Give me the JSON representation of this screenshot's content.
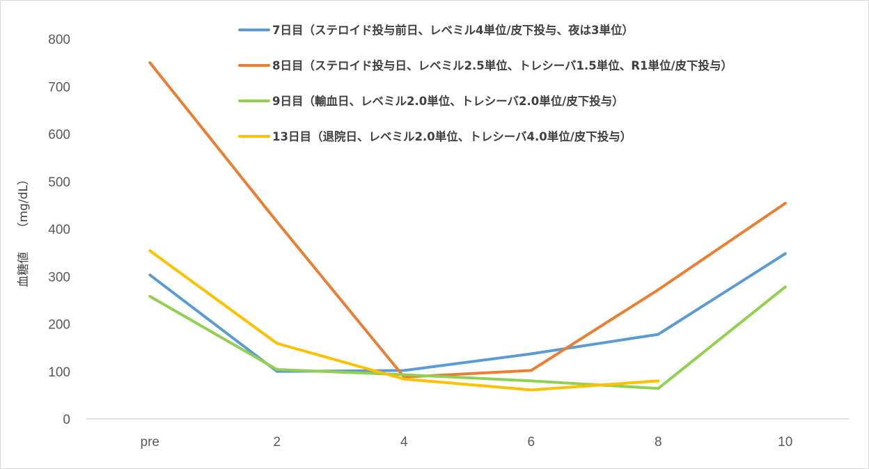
{
  "chart_data": {
    "type": "line",
    "title": "",
    "xlabel": "",
    "ylabel": "血糖値　　（mg/dL）",
    "categories": [
      "pre",
      "2",
      "4",
      "6",
      "8",
      "10"
    ],
    "ylim": [
      0,
      800
    ],
    "yticks": [
      0,
      100,
      200,
      300,
      400,
      500,
      600,
      700,
      800
    ],
    "grid": false,
    "legend_position": "top-right",
    "series": [
      {
        "name": "7日目（ステロイド投与前日、レベミル4単位/皮下投与、夜は3単位）",
        "color": "#5B9BD5",
        "values": [
          303,
          100,
          102,
          137,
          178,
          348
        ]
      },
      {
        "name": "8日目（ステロイド投与日、レベミル2.5単位、トレシーバ1.5単位、R1単位/皮下投与）",
        "color": "#ED7D31",
        "values": [
          750,
          415,
          88,
          102,
          272,
          454
        ]
      },
      {
        "name": "9日目（輸血日、レベミル2.0単位、トレシーバ2.0単位/皮下投与）",
        "color": "#92D050",
        "values": [
          258,
          104,
          93,
          80,
          64,
          278
        ]
      },
      {
        "name": "13日目（退院日、レベミル2.0単位、トレシーバ4.0単位/皮下投与）",
        "color": "#FFC000",
        "values": [
          354,
          159,
          84,
          61,
          80,
          null
        ]
      }
    ]
  }
}
